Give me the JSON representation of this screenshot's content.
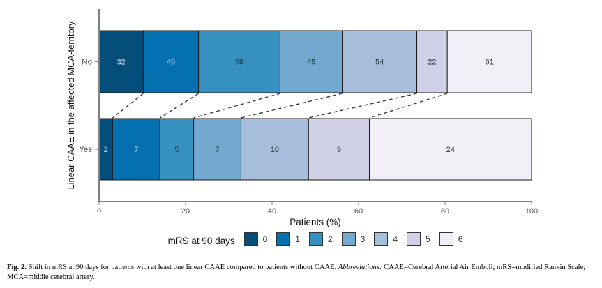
{
  "chart_data": {
    "type": "bar",
    "orientation": "horizontal",
    "stacked": "percent",
    "categories": [
      "No",
      "Yes"
    ],
    "series": [
      {
        "name": "0",
        "color": "#034e7b",
        "values": [
          32,
          2
        ]
      },
      {
        "name": "1",
        "color": "#0570b0",
        "values": [
          40,
          7
        ]
      },
      {
        "name": "2",
        "color": "#3690c0",
        "values": [
          59,
          5
        ]
      },
      {
        "name": "3",
        "color": "#74a9cf",
        "values": [
          45,
          7
        ]
      },
      {
        "name": "4",
        "color": "#a6bddb",
        "values": [
          54,
          10
        ]
      },
      {
        "name": "5",
        "color": "#d0d1e6",
        "values": [
          22,
          9
        ]
      },
      {
        "name": "6",
        "color": "#f1eef6",
        "values": [
          61,
          24
        ]
      }
    ],
    "title": "",
    "xlabel": "Patients (%)",
    "ylabel": "Linear CAAE in the affected MCA-territory",
    "xlim": [
      0,
      100
    ],
    "x_ticks": [
      0,
      20,
      40,
      60,
      80,
      100
    ],
    "grid": false,
    "segment_connectors": "dashed",
    "legend": {
      "title": "mRS at 90 days",
      "entries": [
        "0",
        "1",
        "2",
        "3",
        "4",
        "5",
        "6"
      ],
      "position": "bottom"
    }
  },
  "caption": {
    "segments": [
      {
        "text": "Fig. 2.",
        "style": "bold"
      },
      {
        "text": " Shift in mRS at 90 days for patients with at least one linear CAAE compared to patients without CAAE. ",
        "style": "normal"
      },
      {
        "text": "Abbreviations:",
        "style": "italic"
      },
      {
        "text": " CAAE=Cerebral Arterial Air Emboli; mRS=modified Rankin Scale; MCA=middle cerebral artery.",
        "style": "normal"
      }
    ]
  }
}
